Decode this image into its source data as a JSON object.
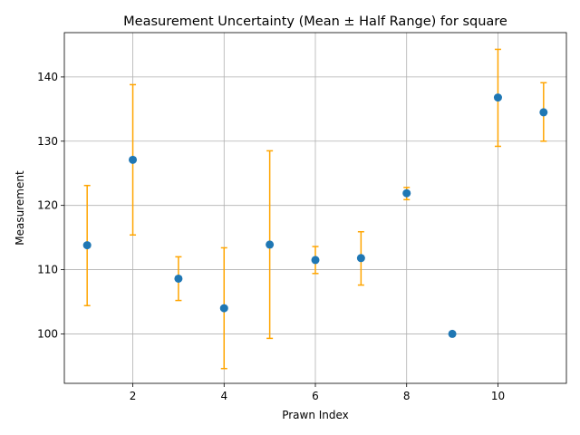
{
  "chart_data": {
    "type": "scatter",
    "title": "Measurement Uncertainty (Mean ± Half Range) for square",
    "xlabel": "Prawn Index",
    "ylabel": "Measurement",
    "xlim": [
      0.5,
      11.5
    ],
    "ylim": [
      92.3,
      146.9
    ],
    "xticks": [
      2,
      4,
      6,
      8,
      10
    ],
    "yticks": [
      100,
      110,
      120,
      130,
      140
    ],
    "grid": true,
    "marker_color": "#1f77b4",
    "errorbar_color": "#ffa500",
    "points": [
      {
        "x": 1,
        "y": 113.8,
        "err_low": 104.4,
        "err_high": 123.1
      },
      {
        "x": 2,
        "y": 127.1,
        "err_low": 115.4,
        "err_high": 138.8
      },
      {
        "x": 3,
        "y": 108.6,
        "err_low": 105.2,
        "err_high": 112.0
      },
      {
        "x": 4,
        "y": 104.0,
        "err_low": 94.6,
        "err_high": 113.4
      },
      {
        "x": 5,
        "y": 113.9,
        "err_low": 99.3,
        "err_high": 128.5
      },
      {
        "x": 6,
        "y": 111.5,
        "err_low": 109.4,
        "err_high": 113.6
      },
      {
        "x": 7,
        "y": 111.8,
        "err_low": 107.6,
        "err_high": 115.9
      },
      {
        "x": 8,
        "y": 121.9,
        "err_low": 120.9,
        "err_high": 122.8
      },
      {
        "x": 9,
        "y": 100.0,
        "err_low": 100.0,
        "err_high": 100.0
      },
      {
        "x": 10,
        "y": 136.8,
        "err_low": 129.2,
        "err_high": 144.3
      },
      {
        "x": 11,
        "y": 134.5,
        "err_low": 130.0,
        "err_high": 139.1
      }
    ]
  }
}
